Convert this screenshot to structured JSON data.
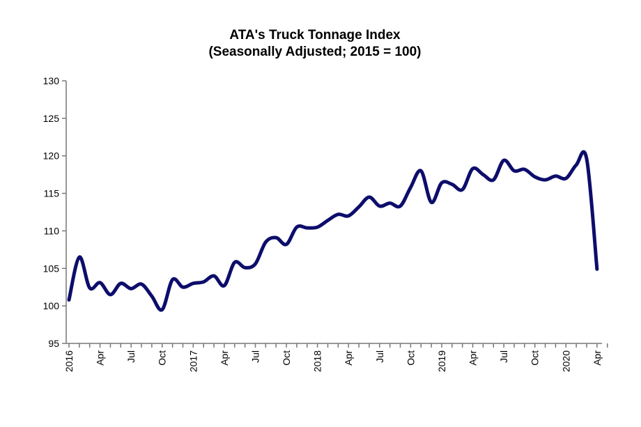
{
  "chart_data": {
    "type": "line",
    "title": "ATA's Truck Tonnage Index",
    "subtitle": "(Seasonally Adjusted; 2015 = 100)",
    "xlabel": "",
    "ylabel": "",
    "ylim": [
      95,
      130
    ],
    "yticks": [
      95,
      100,
      105,
      110,
      115,
      120,
      125,
      130
    ],
    "grid": false,
    "line_color": "#0d0d6b",
    "x_tick_labels": [
      "2016",
      "Apr",
      "Jul",
      "Oct",
      "2017",
      "Apr",
      "Jul",
      "Oct",
      "2018",
      "Apr",
      "Jul",
      "Oct",
      "2019",
      "Apr",
      "Jul",
      "Oct",
      "2020",
      "Apr"
    ],
    "series": [
      {
        "name": "Truck Tonnage Index",
        "start": "2016-01",
        "values": [
          100.8,
          106.5,
          102.4,
          103.1,
          101.5,
          103.0,
          102.3,
          102.9,
          101.3,
          99.5,
          103.5,
          102.5,
          103.0,
          103.2,
          104.0,
          102.7,
          105.8,
          105.1,
          105.6,
          108.5,
          109.1,
          108.2,
          110.5,
          110.4,
          110.5,
          111.4,
          112.2,
          112.0,
          113.2,
          114.5,
          113.3,
          113.7,
          113.3,
          115.8,
          118.0,
          113.8,
          116.4,
          116.2,
          115.5,
          118.3,
          117.5,
          116.8,
          119.4,
          118.0,
          118.2,
          117.2,
          116.8,
          117.3,
          117.0,
          118.8,
          119.6,
          104.9
        ]
      }
    ]
  }
}
